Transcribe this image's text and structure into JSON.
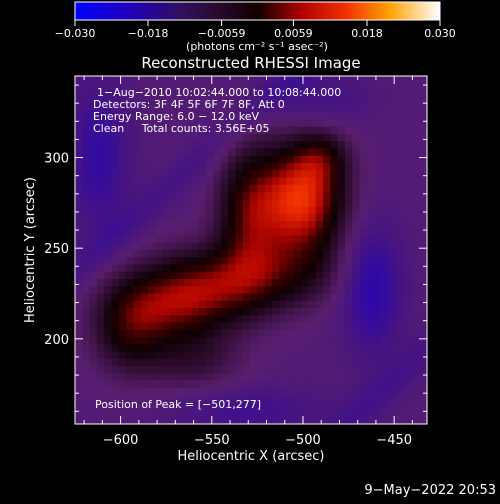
{
  "chart_data": {
    "type": "heatmap",
    "title": "Reconstructed RHESSI Image",
    "xlabel": "Heliocentric X (arcsec)",
    "ylabel": "Heliocentric Y (arcsec)",
    "xlim": [
      -625,
      -432
    ],
    "ylim": [
      153,
      345
    ],
    "xticks": [
      -600,
      -550,
      -500,
      -450
    ],
    "yticks": [
      200,
      250,
      300
    ],
    "xtick_labels": [
      "−600",
      "−550",
      "−500",
      "−450"
    ],
    "ytick_labels": [
      "200",
      "250",
      "300"
    ],
    "colorbar": {
      "range": [
        -0.03,
        0.03
      ],
      "ticks": [
        -0.03,
        -0.018,
        -0.0059,
        0.0059,
        0.018,
        0.03
      ],
      "tick_labels": [
        "−0.030",
        "−0.018",
        "−0.0059",
        "0.0059",
        "0.018",
        "0.030"
      ],
      "unit_label": "(photons cm⁻² s⁻¹ asec⁻²)"
    },
    "info_lines": [
      "1−Aug−2010 10:02:44.000 to 10:08:44.000",
      "Detectors: 3F 4F 5F 6F 7F 8F, Att 0",
      "Energy Range: 6.0 − 12.0 keV",
      "Clean     Total counts: 3.56E+05"
    ],
    "peak_label": "Position of Peak = [−501,277]",
    "peak": {
      "x": -501,
      "y": 277,
      "value": 0.03
    },
    "date_stamp": "9−May−2022 20:53",
    "sources": [
      {
        "x": -501,
        "y": 277,
        "sx": 16,
        "sy": 20,
        "amp": 0.0205
      },
      {
        "x": -530,
        "y": 268,
        "sx": 12,
        "sy": 26,
        "amp": 0.0112
      },
      {
        "x": -490,
        "y": 300,
        "sx": 10,
        "sy": 10,
        "amp": 0.0065
      },
      {
        "x": -545,
        "y": 232,
        "sx": 26,
        "sy": 14,
        "amp": 0.0105
      },
      {
        "x": -570,
        "y": 218,
        "sx": 22,
        "sy": 14,
        "amp": 0.0112
      },
      {
        "x": -595,
        "y": 205,
        "sx": 14,
        "sy": 17,
        "amp": 0.009
      },
      {
        "x": -560,
        "y": 188,
        "sx": 18,
        "sy": 12,
        "amp": 0.005
      },
      {
        "x": -505,
        "y": 238,
        "sx": 18,
        "sy": 14,
        "amp": 0.0058
      },
      {
        "x": -462,
        "y": 228,
        "sx": 12,
        "sy": 26,
        "amp": -0.006
      },
      {
        "x": -490,
        "y": 332,
        "sx": 20,
        "sy": 10,
        "amp": -0.003
      },
      {
        "x": -530,
        "y": 160,
        "sx": 30,
        "sy": 10,
        "amp": -0.0035
      },
      {
        "x": -612,
        "y": 300,
        "sx": 12,
        "sy": 30,
        "amp": -0.005
      }
    ],
    "background": -0.0105
  }
}
